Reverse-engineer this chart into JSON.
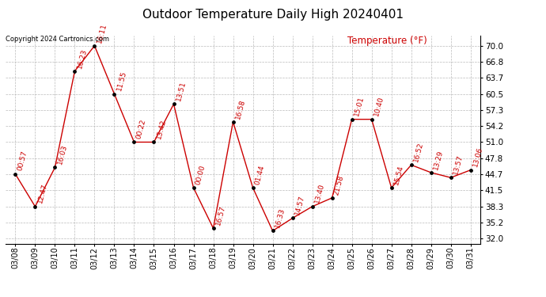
{
  "title": "Outdoor Temperature Daily High 20240401",
  "ylabel": "Temperature (°F)",
  "copyright": "Copyright 2024 Cartronics.com",
  "background_color": "#ffffff",
  "line_color": "#cc0000",
  "point_color": "#000000",
  "label_color": "#cc0000",
  "grid_color": "#bbbbbb",
  "dates": [
    "03/08",
    "03/09",
    "03/10",
    "03/11",
    "03/12",
    "03/13",
    "03/14",
    "03/15",
    "03/16",
    "03/17",
    "03/18",
    "03/19",
    "03/20",
    "03/21",
    "03/22",
    "03/23",
    "03/24",
    "03/25",
    "03/26",
    "03/27",
    "03/28",
    "03/29",
    "03/30",
    "03/31"
  ],
  "temps": [
    44.7,
    38.3,
    46.0,
    65.0,
    70.0,
    60.5,
    51.0,
    51.0,
    58.5,
    42.0,
    34.0,
    55.0,
    42.0,
    33.5,
    36.0,
    38.3,
    40.0,
    55.5,
    55.5,
    42.0,
    46.5,
    45.0,
    44.0,
    45.5
  ],
  "time_labels": [
    "00:57",
    "12:47",
    "16:03",
    "16:23",
    "16:11",
    "11:55",
    "00:22",
    "13:42",
    "13:51",
    "00:00",
    "16:57",
    "16:58",
    "01:44",
    "16:33",
    "14:57",
    "13:40",
    "21:58",
    "15:01",
    "10:40",
    "15:54",
    "16:52",
    "13:29",
    "13:57",
    "13:06"
  ],
  "yticks": [
    32.0,
    35.2,
    38.3,
    41.5,
    44.7,
    47.8,
    51.0,
    54.2,
    57.3,
    60.5,
    63.7,
    66.8,
    70.0
  ],
  "ylim": [
    31.0,
    72.0
  ],
  "label_fontsize": 6.5,
  "title_fontsize": 11,
  "copyright_fontsize": 6.0,
  "ylabel_fontsize": 8.5
}
